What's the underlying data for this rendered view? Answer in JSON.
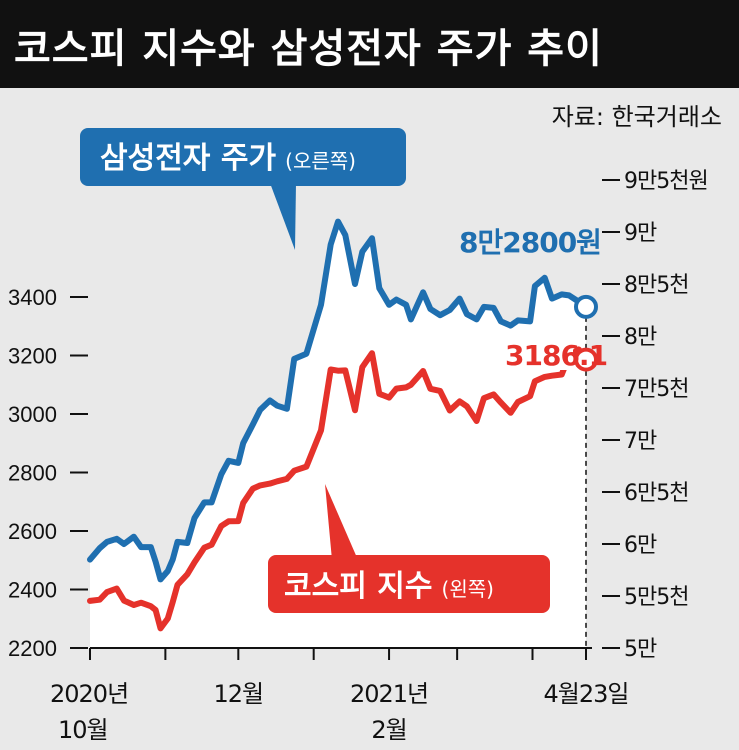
{
  "title": "코스피 지수와 삼성전자 주가 추이",
  "source": "자료: 한국거래소",
  "colors": {
    "samsung": "#1f6fb0",
    "kospi": "#e5322b",
    "fill": "#ffffff",
    "background": "#e9e9e9",
    "title_bg": "#111111"
  },
  "chart_data": {
    "type": "line",
    "x_range": [
      "2020-10-01",
      "2021-04-23"
    ],
    "x_ticks": [
      {
        "date": "2020-10-01",
        "label_1": "2020년",
        "label_2": "10월"
      },
      {
        "date": "2020-11-01",
        "label_1": "",
        "label_2": ""
      },
      {
        "date": "2020-12-01",
        "label_1": "12월",
        "label_2": ""
      },
      {
        "date": "2021-01-01",
        "label_1": "",
        "label_2": ""
      },
      {
        "date": "2021-02-01",
        "label_1": "2021년",
        "label_2": "2월"
      },
      {
        "date": "2021-03-01",
        "label_1": "",
        "label_2": ""
      },
      {
        "date": "2021-04-01",
        "label_1": "",
        "label_2": ""
      },
      {
        "date": "2021-04-23",
        "label_1": "4월23일",
        "label_2": ""
      }
    ],
    "left_axis": {
      "ylim": [
        2200,
        3800
      ],
      "ticks": [
        2200,
        2400,
        2600,
        2800,
        3000,
        3200,
        3400
      ]
    },
    "right_axis": {
      "ylim": [
        50000,
        95000
      ],
      "ticks": [
        {
          "value": 50000,
          "label": "5만"
        },
        {
          "value": 55000,
          "label": "5만5천"
        },
        {
          "value": 60000,
          "label": "6만"
        },
        {
          "value": 65000,
          "label": "6만5천"
        },
        {
          "value": 70000,
          "label": "7만"
        },
        {
          "value": 75000,
          "label": "7만5천"
        },
        {
          "value": 80000,
          "label": "8만"
        },
        {
          "value": 85000,
          "label": "8만5천"
        },
        {
          "value": 90000,
          "label": "9만"
        },
        {
          "value": 95000,
          "label": "9만5천원"
        }
      ]
    },
    "series": [
      {
        "name": "삼성전자 주가",
        "axis_note": "(오른쪽)",
        "axis": "right",
        "end_label": "8만2800원",
        "points": [
          [
            "2020-10-01",
            58500
          ],
          [
            "2020-10-05",
            59600
          ],
          [
            "2020-10-08",
            60200
          ],
          [
            "2020-10-12",
            60500
          ],
          [
            "2020-10-15",
            60000
          ],
          [
            "2020-10-19",
            60700
          ],
          [
            "2020-10-22",
            59700
          ],
          [
            "2020-10-26",
            59700
          ],
          [
            "2020-10-28",
            58300
          ],
          [
            "2020-10-30",
            56600
          ],
          [
            "2020-11-02",
            57400
          ],
          [
            "2020-11-04",
            58500
          ],
          [
            "2020-11-06",
            60200
          ],
          [
            "2020-11-10",
            60100
          ],
          [
            "2020-11-13",
            62500
          ],
          [
            "2020-11-17",
            64000
          ],
          [
            "2020-11-20",
            64000
          ],
          [
            "2020-11-24",
            66700
          ],
          [
            "2020-11-27",
            68000
          ],
          [
            "2020-12-01",
            67800
          ],
          [
            "2020-12-03",
            69700
          ],
          [
            "2020-12-07",
            71500
          ],
          [
            "2020-12-10",
            72900
          ],
          [
            "2020-12-14",
            73800
          ],
          [
            "2020-12-17",
            73300
          ],
          [
            "2020-12-21",
            73000
          ],
          [
            "2020-12-24",
            77800
          ],
          [
            "2020-12-29",
            78300
          ],
          [
            "2021-01-04",
            83000
          ],
          [
            "2021-01-08",
            88800
          ],
          [
            "2021-01-11",
            91000
          ],
          [
            "2021-01-14",
            89700
          ],
          [
            "2021-01-18",
            85000
          ],
          [
            "2021-01-21",
            88100
          ],
          [
            "2021-01-25",
            89400
          ],
          [
            "2021-01-28",
            84600
          ],
          [
            "2021-02-01",
            83000
          ],
          [
            "2021-02-04",
            83500
          ],
          [
            "2021-02-08",
            83000
          ],
          [
            "2021-02-10",
            81600
          ],
          [
            "2021-02-15",
            84200
          ],
          [
            "2021-02-18",
            82600
          ],
          [
            "2021-02-22",
            82000
          ],
          [
            "2021-02-26",
            82500
          ],
          [
            "2021-03-02",
            83600
          ],
          [
            "2021-03-05",
            82100
          ],
          [
            "2021-03-09",
            81600
          ],
          [
            "2021-03-12",
            82800
          ],
          [
            "2021-03-16",
            82700
          ],
          [
            "2021-03-19",
            81400
          ],
          [
            "2021-03-23",
            81000
          ],
          [
            "2021-03-26",
            81500
          ],
          [
            "2021-03-31",
            81400
          ],
          [
            "2021-04-02",
            84800
          ],
          [
            "2021-04-06",
            85600
          ],
          [
            "2021-04-09",
            83600
          ],
          [
            "2021-04-13",
            84000
          ],
          [
            "2021-04-16",
            83900
          ],
          [
            "2021-04-20",
            83300
          ],
          [
            "2021-04-23",
            82800
          ]
        ]
      },
      {
        "name": "코스피 지수",
        "axis_note": "(왼쪽)",
        "axis": "left",
        "end_label": "3186.1",
        "points": [
          [
            "2020-10-01",
            2361
          ],
          [
            "2020-10-05",
            2365
          ],
          [
            "2020-10-08",
            2391
          ],
          [
            "2020-10-12",
            2403
          ],
          [
            "2020-10-15",
            2362
          ],
          [
            "2020-10-19",
            2347
          ],
          [
            "2020-10-22",
            2355
          ],
          [
            "2020-10-26",
            2343
          ],
          [
            "2020-10-28",
            2330
          ],
          [
            "2020-10-30",
            2267
          ],
          [
            "2020-11-02",
            2301
          ],
          [
            "2020-11-04",
            2357
          ],
          [
            "2020-11-06",
            2416
          ],
          [
            "2020-11-10",
            2452
          ],
          [
            "2020-11-13",
            2493
          ],
          [
            "2020-11-17",
            2543
          ],
          [
            "2020-11-20",
            2553
          ],
          [
            "2020-11-24",
            2617
          ],
          [
            "2020-11-27",
            2633
          ],
          [
            "2020-12-01",
            2634
          ],
          [
            "2020-12-03",
            2696
          ],
          [
            "2020-12-07",
            2745
          ],
          [
            "2020-12-10",
            2756
          ],
          [
            "2020-12-14",
            2762
          ],
          [
            "2020-12-17",
            2770
          ],
          [
            "2020-12-21",
            2778
          ],
          [
            "2020-12-24",
            2806
          ],
          [
            "2020-12-29",
            2820
          ],
          [
            "2021-01-04",
            2944
          ],
          [
            "2021-01-08",
            3152
          ],
          [
            "2021-01-11",
            3148
          ],
          [
            "2021-01-14",
            3149
          ],
          [
            "2021-01-18",
            3013
          ],
          [
            "2021-01-21",
            3160
          ],
          [
            "2021-01-25",
            3208
          ],
          [
            "2021-01-28",
            3069
          ],
          [
            "2021-02-01",
            3056
          ],
          [
            "2021-02-04",
            3087
          ],
          [
            "2021-02-08",
            3091
          ],
          [
            "2021-02-10",
            3100
          ],
          [
            "2021-02-15",
            3147
          ],
          [
            "2021-02-18",
            3086
          ],
          [
            "2021-02-22",
            3079
          ],
          [
            "2021-02-26",
            3012
          ],
          [
            "2021-03-02",
            3043
          ],
          [
            "2021-03-05",
            3026
          ],
          [
            "2021-03-09",
            2976
          ],
          [
            "2021-03-12",
            3054
          ],
          [
            "2021-03-16",
            3067
          ],
          [
            "2021-03-19",
            3039
          ],
          [
            "2021-03-23",
            3004
          ],
          [
            "2021-03-26",
            3041
          ],
          [
            "2021-03-31",
            3061
          ],
          [
            "2021-04-02",
            3112
          ],
          [
            "2021-04-06",
            3127
          ],
          [
            "2021-04-09",
            3131
          ],
          [
            "2021-04-13",
            3135
          ],
          [
            "2021-04-16",
            3198
          ],
          [
            "2021-04-20",
            3221
          ],
          [
            "2021-04-23",
            3186.1
          ]
        ]
      }
    ]
  }
}
